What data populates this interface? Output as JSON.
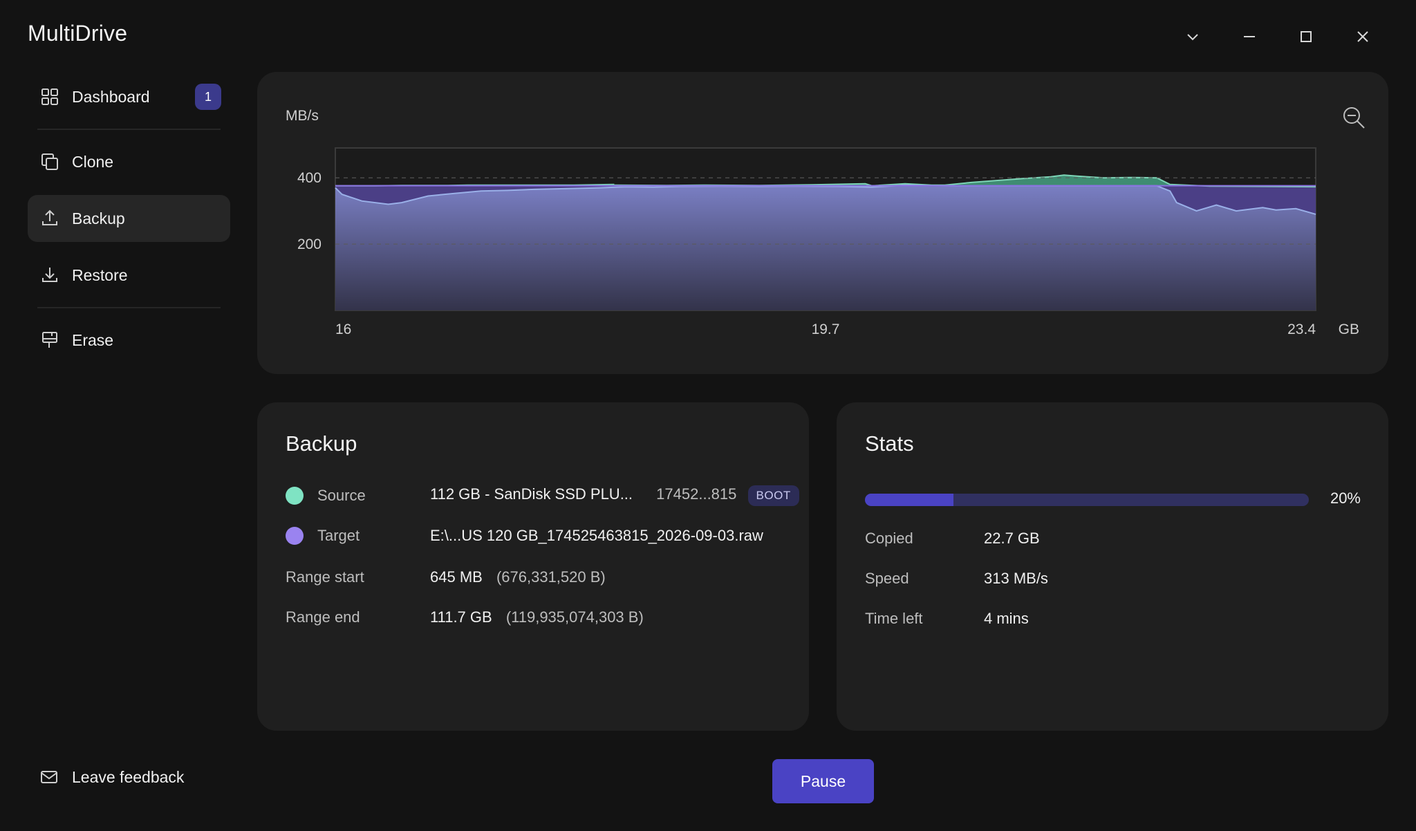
{
  "app": {
    "title": "MultiDrive"
  },
  "window_controls": [
    "chevron-down-icon",
    "minimize-icon",
    "maximize-icon",
    "close-icon"
  ],
  "sidebar": {
    "items": [
      {
        "label": "Dashboard",
        "icon": "grid-icon",
        "badge": "1"
      },
      {
        "label": "Clone",
        "icon": "copy-icon"
      },
      {
        "label": "Backup",
        "icon": "upload-icon",
        "active": true
      },
      {
        "label": "Restore",
        "icon": "download-icon"
      },
      {
        "label": "Erase",
        "icon": "eraser-icon"
      }
    ],
    "feedback_label": "Leave feedback"
  },
  "chart_data": {
    "type": "area",
    "ylabel": "MB/s",
    "xlabel": "GB",
    "x_ticks": [
      "16",
      "19.7",
      "23.4"
    ],
    "y_ticks": [
      "400",
      "200"
    ],
    "xlim": [
      16,
      23.4
    ],
    "ylim": [
      0,
      490
    ],
    "grid": "dashed horizontal",
    "series": [
      {
        "color": "#7dd4b6",
        "x": [
          16.0,
          16.1,
          16.3,
          16.5,
          16.7,
          16.85,
          17.0,
          17.2,
          17.5,
          17.8,
          18.1,
          18.1,
          18.5,
          18.8,
          19.2,
          19.6,
          20.0,
          20.05,
          20.3,
          20.5,
          20.6,
          20.8,
          21.0,
          21.2,
          21.4,
          21.5,
          21.6,
          21.8,
          22.0,
          22.2,
          22.3,
          22.6,
          23.0,
          23.4
        ],
        "y": [
          376,
          376,
          376,
          377,
          377,
          377,
          378,
          378,
          378,
          378,
          380,
          378,
          377,
          378,
          377,
          379,
          382,
          376,
          382,
          378,
          378,
          386,
          392,
          398,
          403,
          408,
          405,
          400,
          401,
          400,
          380,
          375,
          374,
          373
        ]
      },
      {
        "color": "#7a7fc4",
        "x": [
          16.0,
          16.05,
          16.2,
          16.4,
          16.5,
          16.7,
          16.9,
          17.1,
          17.3,
          17.5,
          17.7,
          18.0,
          18.2,
          18.4,
          18.6,
          18.9,
          19.2,
          19.5,
          19.8,
          20.05,
          20.3,
          20.6,
          21.0,
          21.4,
          21.8,
          22.0,
          22.1,
          22.2,
          22.3,
          22.35,
          22.5,
          22.65,
          22.8,
          23.0,
          23.1,
          23.25,
          23.4
        ],
        "y": [
          370,
          350,
          330,
          320,
          325,
          345,
          353,
          360,
          362,
          365,
          367,
          370,
          373,
          372,
          374,
          375,
          374,
          375,
          374,
          372,
          378,
          376,
          376,
          376,
          376,
          376,
          376,
          376,
          360,
          325,
          300,
          318,
          300,
          310,
          303,
          307,
          290
        ]
      }
    ],
    "series_fill_above_baseline": "#4b3f86"
  },
  "backup": {
    "title": "Backup",
    "source_label": "Source",
    "source_value": "112 GB - SanDisk SSD PLU...",
    "source_serial": "17452...815",
    "source_badge": "BOOT",
    "source_color": "#7fe3c3",
    "target_label": "Target",
    "target_value": "E:\\...US 120 GB_174525463815_2026-09-03.raw",
    "target_color": "#9a83f0",
    "range_start_label": "Range start",
    "range_start_value": "645 MB",
    "range_start_bytes": "(676,331,520 B)",
    "range_end_label": "Range end",
    "range_end_value": "111.7 GB",
    "range_end_bytes": "(119,935,074,303 B)"
  },
  "stats": {
    "title": "Stats",
    "progress": 0.2,
    "progress_label": "20%",
    "copied_label": "Copied",
    "copied_value": "22.7 GB",
    "speed_label": "Speed",
    "speed_value": "313 MB/s",
    "time_left_label": "Time left",
    "time_left_value": "4 mins"
  },
  "actions": {
    "pause_label": "Pause"
  },
  "colors": {
    "accent": "#4a43c4",
    "badge": "#3b3a8c",
    "background": "#131313",
    "panel": "#1f1f1f"
  }
}
